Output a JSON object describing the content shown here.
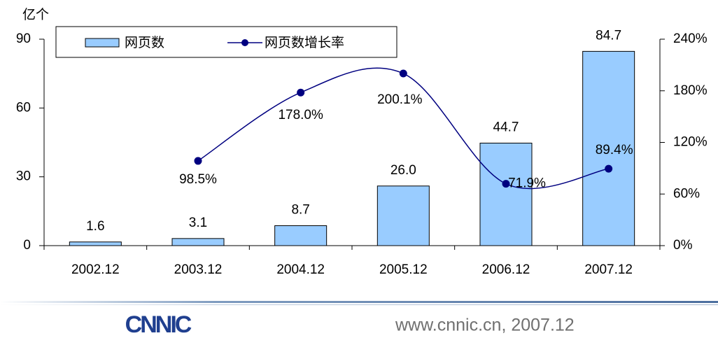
{
  "chart_data": {
    "type": "bar",
    "y_label": "亿个",
    "categories": [
      "2002.12",
      "2003.12",
      "2004.12",
      "2005.12",
      "2006.12",
      "2007.12"
    ],
    "series": [
      {
        "name": "网页数",
        "type": "bar",
        "color": "#99ccff",
        "values": [
          1.6,
          3.1,
          8.7,
          26.0,
          44.7,
          84.7
        ],
        "value_labels": [
          "1.6",
          "3.1",
          "8.7",
          "26.0",
          "44.7",
          "84.7"
        ]
      },
      {
        "name": "网页数增长率",
        "type": "line",
        "axis": "y2",
        "color": "#000080",
        "values": [
          null,
          98.5,
          178.0,
          200.1,
          71.9,
          89.4
        ],
        "value_labels": [
          null,
          "98.5%",
          "178.0%",
          "200.1%",
          "71.9%",
          "89.4%"
        ]
      }
    ],
    "ylim": [
      0,
      90
    ],
    "yticks": [
      0,
      30,
      60,
      90
    ],
    "y2lim": [
      0,
      240
    ],
    "y2ticks": [
      {
        "value": 0,
        "label": "0%"
      },
      {
        "value": 60,
        "label": "60%"
      },
      {
        "value": 120,
        "label": "120%"
      },
      {
        "value": 180,
        "label": "180%"
      },
      {
        "value": 240,
        "label": "240%"
      }
    ],
    "legend": "top-left"
  },
  "footer": {
    "logo": "CNNIC",
    "source": "www.cnnic.cn, 2007.12"
  }
}
